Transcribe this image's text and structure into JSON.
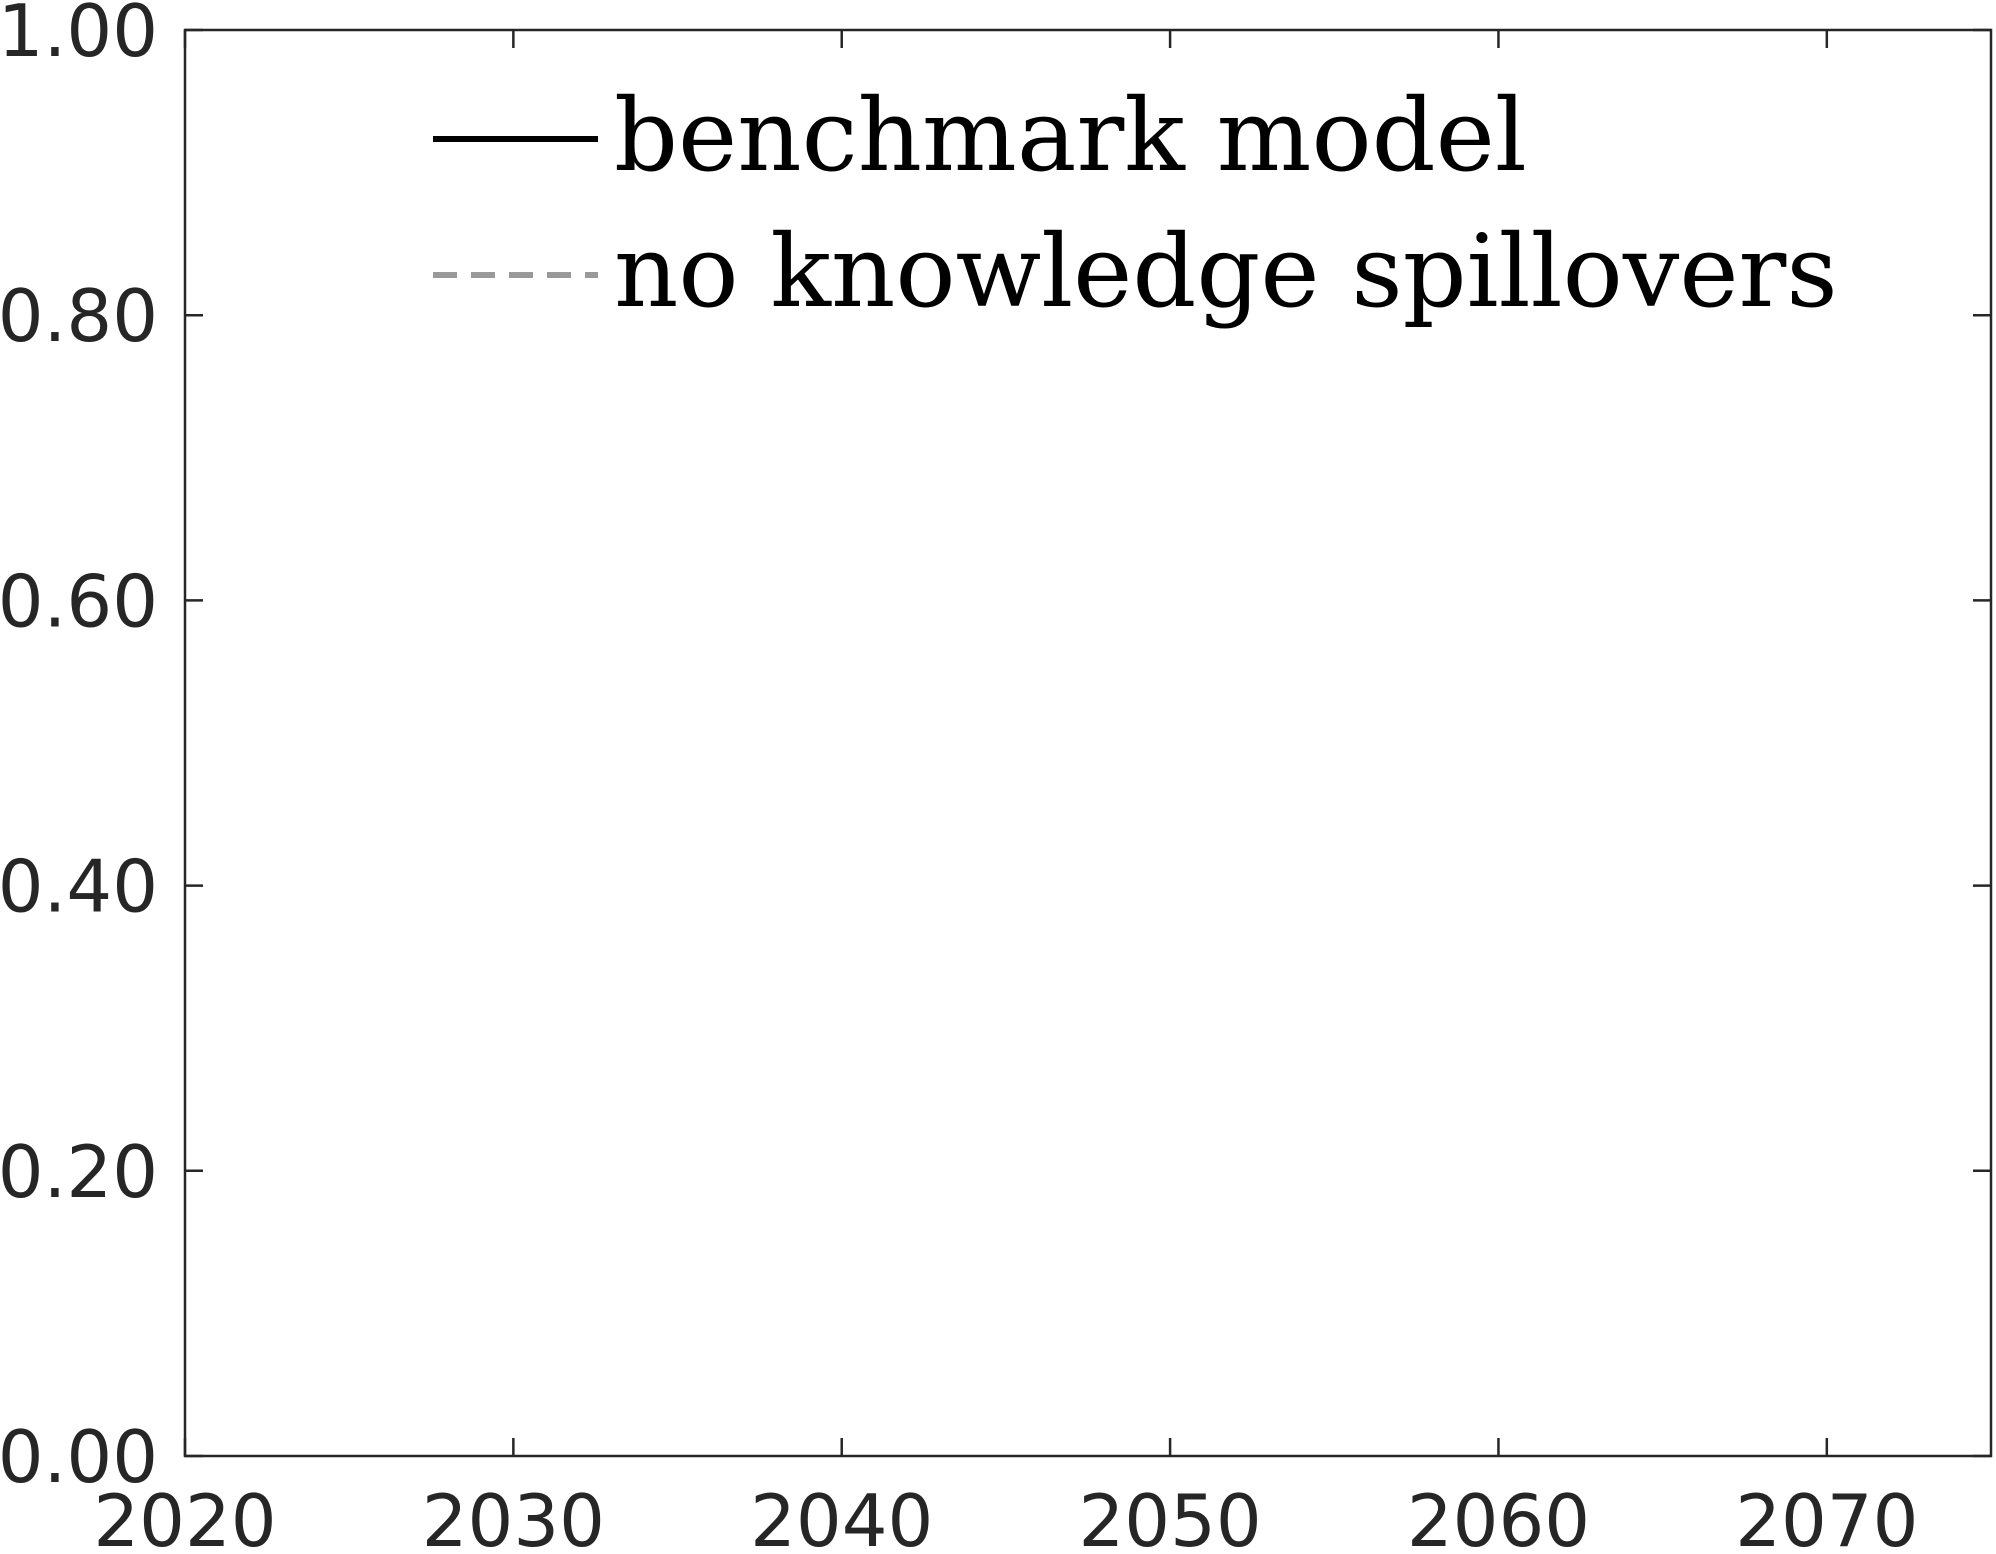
{
  "chart_data": {
    "type": "line",
    "title": "",
    "xlabel": "",
    "ylabel": "",
    "xlim": [
      2020,
      2075
    ],
    "ylim": [
      0,
      1
    ],
    "x_ticks": [
      2020,
      2030,
      2040,
      2050,
      2060,
      2070
    ],
    "x_tick_labels": [
      "2020",
      "2030",
      "2040",
      "2050",
      "2060",
      "2070"
    ],
    "y_ticks": [
      0,
      0.2,
      0.4,
      0.6,
      0.8,
      1.0
    ],
    "y_tick_labels": [
      "0.00",
      "0.20",
      "0.40",
      "0.60",
      "0.80",
      "1.00"
    ],
    "grid": false,
    "legend_position": "top-left",
    "series": [
      {
        "name": "benchmark model",
        "color": "#000000",
        "line_style": "solid",
        "x": [],
        "y": []
      },
      {
        "name": "no knowledge spillovers",
        "color": "#999999",
        "line_style": "dashed",
        "x": [],
        "y": []
      }
    ]
  }
}
